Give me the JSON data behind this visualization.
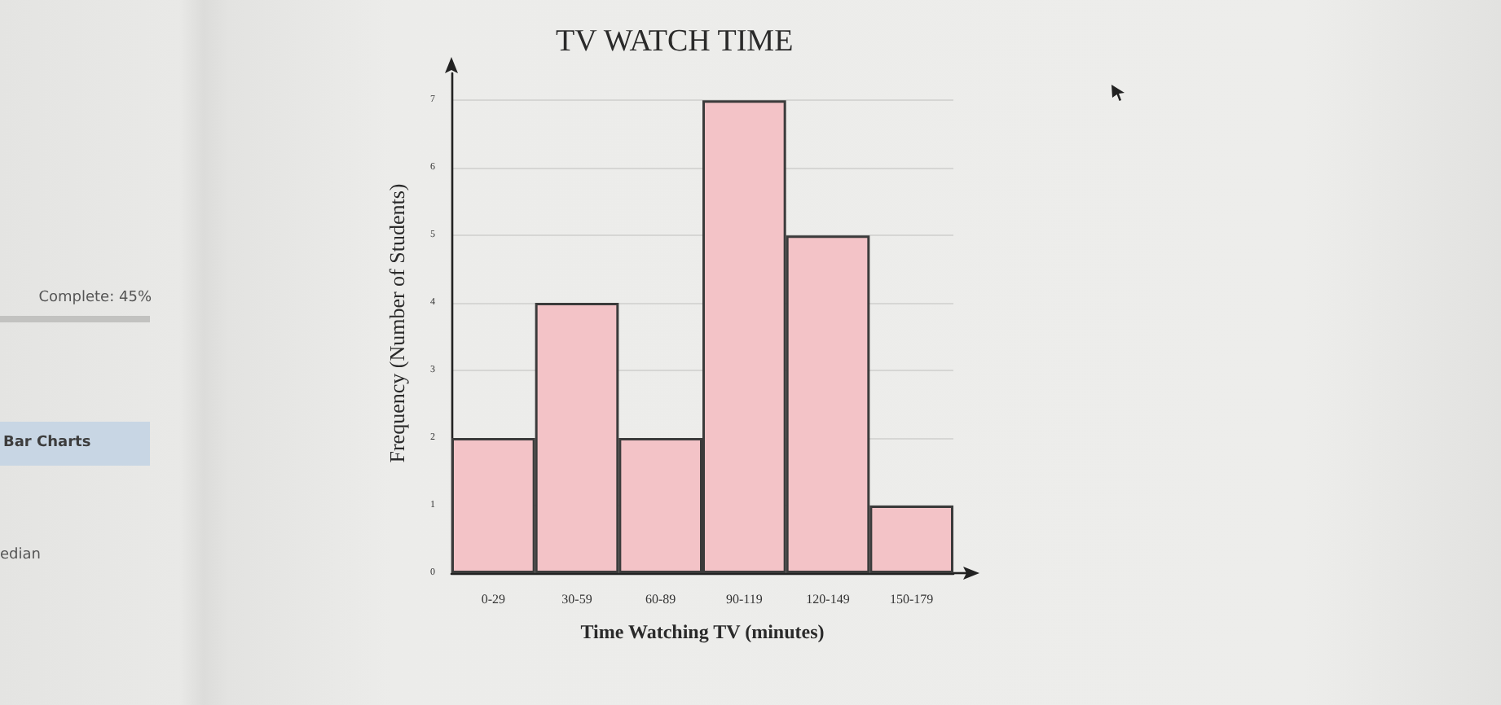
{
  "chart_data": {
    "type": "bar",
    "title": "TV WATCH TIME",
    "xlabel": "Time Watching TV (minutes)",
    "ylabel": "Frequency (Number of Students)",
    "categories": [
      "0-29",
      "30-59",
      "60-89",
      "90-119",
      "120-149",
      "150-179"
    ],
    "values": [
      2,
      4,
      2,
      7,
      5,
      1
    ],
    "color": "#f3c3c7",
    "ylim": [
      0,
      7.4
    ],
    "yticks": [
      0,
      1,
      2,
      3,
      4,
      5,
      6,
      7
    ],
    "grid": "y",
    "annotations": [
      "Complete: 45%",
      "Bar Charts",
      "edian"
    ]
  }
}
